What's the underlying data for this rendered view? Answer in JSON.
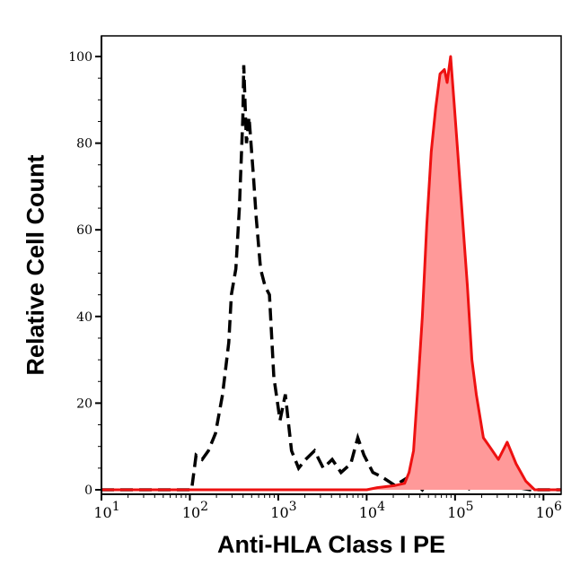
{
  "chart_data": {
    "type": "area",
    "xlabel": "Anti-HLA Class I PE",
    "ylabel": "Relative Cell Count",
    "x_scale": "log10",
    "xlim_log10": [
      1.0,
      6.2
    ],
    "ylim": [
      0,
      105
    ],
    "x_tick_labels": [
      {
        "base": "10",
        "exp": "1",
        "log10": 1
      },
      {
        "base": "10",
        "exp": "2",
        "log10": 2
      },
      {
        "base": "10",
        "exp": "3",
        "log10": 3
      },
      {
        "base": "10",
        "exp": "4",
        "log10": 4
      },
      {
        "base": "10",
        "exp": "5",
        "log10": 5
      },
      {
        "base": "10",
        "exp": "6",
        "log10": 6
      }
    ],
    "y_ticks": [
      0,
      20,
      40,
      60,
      80,
      100
    ],
    "grid": false,
    "series": [
      {
        "style": "dashed-line",
        "color": "#000000",
        "x_log10": [
          1.0,
          2.0,
          2.02,
          2.07,
          2.14,
          2.21,
          2.29,
          2.37,
          2.44,
          2.47,
          2.52,
          2.56,
          2.6,
          2.61,
          2.64,
          2.67,
          2.72,
          2.75,
          2.8,
          2.85,
          2.9,
          2.95,
          3.02,
          3.08,
          3.15,
          3.23,
          3.31,
          3.41,
          3.51,
          3.61,
          3.71,
          3.82,
          3.9,
          3.97,
          4.07,
          4.17,
          4.32,
          4.48,
          4.63,
          4.73,
          4.95,
          5.14,
          5.39,
          5.59,
          5.85,
          6.2
        ],
        "y": [
          0,
          0,
          0,
          8,
          7,
          9,
          13,
          22,
          34,
          45,
          51,
          65,
          86,
          98,
          80,
          86,
          72,
          63,
          51,
          47,
          45,
          26,
          16,
          22,
          9,
          5,
          7,
          9,
          5,
          7,
          4,
          6,
          12,
          8,
          4,
          3,
          1,
          3,
          0,
          3,
          5,
          0,
          3,
          1,
          0,
          0
        ]
      },
      {
        "style": "filled",
        "color": "#ee1111",
        "fill": "#ff9999",
        "x_log10": [
          1.0,
          4.0,
          4.12,
          4.32,
          4.43,
          4.48,
          4.53,
          4.58,
          4.63,
          4.68,
          4.73,
          4.78,
          4.83,
          4.88,
          4.91,
          4.95,
          4.99,
          5.03,
          5.09,
          5.14,
          5.19,
          5.24,
          5.32,
          5.39,
          5.49,
          5.59,
          5.69,
          5.8,
          5.9,
          6.2
        ],
        "y": [
          0,
          0,
          0.5,
          1,
          1.5,
          4,
          9,
          24,
          40,
          61,
          78,
          88,
          96,
          97,
          94,
          100,
          89,
          78,
          61,
          47,
          30,
          22,
          12,
          10,
          7,
          11,
          6,
          2,
          0,
          0
        ]
      }
    ]
  }
}
